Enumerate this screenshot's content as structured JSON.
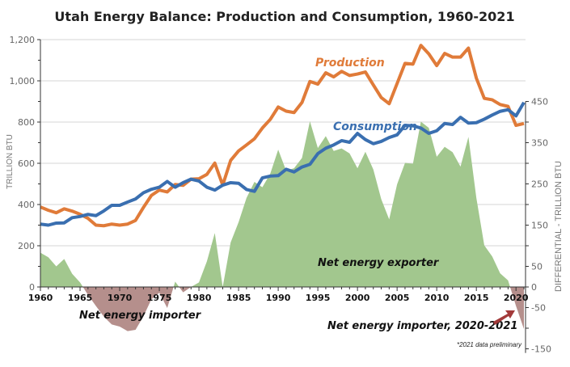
{
  "chart_data": {
    "type": "line",
    "title": "Utah Energy Balance: Production and Consumption, 1960-2021",
    "ylabel": "TRILLION BTU",
    "y2label": "DIFFERENTIAL - TRILLION BTU",
    "ylim": [
      0,
      1200
    ],
    "y2lim": [
      -150,
      450
    ],
    "xlim": [
      1960,
      2021
    ],
    "yticks": [
      "0",
      "200",
      "400",
      "600",
      "800",
      "1,000",
      "1,200"
    ],
    "y2ticks": [
      "450",
      "350",
      "250",
      "150",
      "50",
      "0",
      "-50",
      "-150"
    ],
    "xticks": [
      "1960",
      "1965",
      "1970",
      "1975",
      "1980",
      "1985",
      "1990",
      "1995",
      "2000",
      "2005",
      "2010",
      "2015",
      "2020"
    ],
    "grid": true,
    "x": [
      1960,
      1961,
      1962,
      1963,
      1964,
      1965,
      1966,
      1967,
      1968,
      1969,
      1970,
      1971,
      1972,
      1973,
      1974,
      1975,
      1976,
      1977,
      1978,
      1979,
      1980,
      1981,
      1982,
      1983,
      1984,
      1985,
      1986,
      1987,
      1988,
      1989,
      1990,
      1991,
      1992,
      1993,
      1994,
      1995,
      1996,
      1997,
      1998,
      1999,
      2000,
      2001,
      2002,
      2003,
      2004,
      2005,
      2006,
      2007,
      2008,
      2009,
      2010,
      2011,
      2012,
      2013,
      2014,
      2015,
      2016,
      2017,
      2018,
      2019,
      2020,
      2021
    ],
    "series": [
      {
        "name": "Production",
        "axis": "left",
        "color": "#E07B39",
        "values": [
          388,
          372,
          360,
          379,
          368,
          353,
          333,
          300,
          297,
          305,
          300,
          305,
          323,
          386,
          444,
          470,
          461,
          497,
          493,
          523,
          525,
          546,
          601,
          494,
          614,
          660,
          689,
          719,
          771,
          813,
          873,
          853,
          846,
          895,
          997,
          984,
          1039,
          1019,
          1046,
          1026,
          1033,
          1043,
          980,
          919,
          889,
          987,
          1085,
          1081,
          1172,
          1131,
          1074,
          1133,
          1115,
          1115,
          1159,
          1013,
          915,
          908,
          885,
          876,
          784,
          793
        ]
      },
      {
        "name": "Consumption",
        "axis": "left",
        "color": "#3A6FB0",
        "values": [
          305,
          300,
          310,
          311,
          336,
          342,
          352,
          346,
          369,
          396,
          396,
          412,
          427,
          457,
          474,
          484,
          512,
          484,
          506,
          523,
          514,
          484,
          470,
          494,
          506,
          503,
          473,
          464,
          529,
          538,
          540,
          571,
          558,
          582,
          595,
          647,
          673,
          689,
          710,
          702,
          745,
          715,
          695,
          706,
          725,
          738,
          784,
          782,
          771,
          745,
          758,
          793,
          788,
          823,
          795,
          797,
          814,
          834,
          852,
          860,
          830,
          895
        ]
      },
      {
        "axis": "right",
        "type": "area",
        "positive_color": "#A2C78E",
        "negative_color": "#B58F8C",
        "values": [
          83,
          72,
          50,
          68,
          32,
          11,
          -19,
          -46,
          -72,
          -91,
          -96,
          -107,
          -104,
          -71,
          -30,
          -14,
          -51,
          13,
          -13,
          0,
          11,
          62,
          131,
          0,
          108,
          157,
          216,
          255,
          242,
          275,
          333,
          282,
          288,
          313,
          402,
          337,
          366,
          330,
          336,
          324,
          288,
          328,
          285,
          213,
          164,
          249,
          301,
          299,
          401,
          386,
          316,
          340,
          327,
          292,
          364,
          216,
          101,
          74,
          33,
          16,
          -46,
          -102
        ]
      }
    ],
    "annotations": {
      "production": "Production",
      "consumption": "Consumption",
      "exporter": "Net energy exporter",
      "importer": "Net energy importer",
      "importer_recent": "Net energy importer, 2020-2021",
      "note": "*2021 data preliminary"
    },
    "arrow_color": "#A33A3A"
  }
}
